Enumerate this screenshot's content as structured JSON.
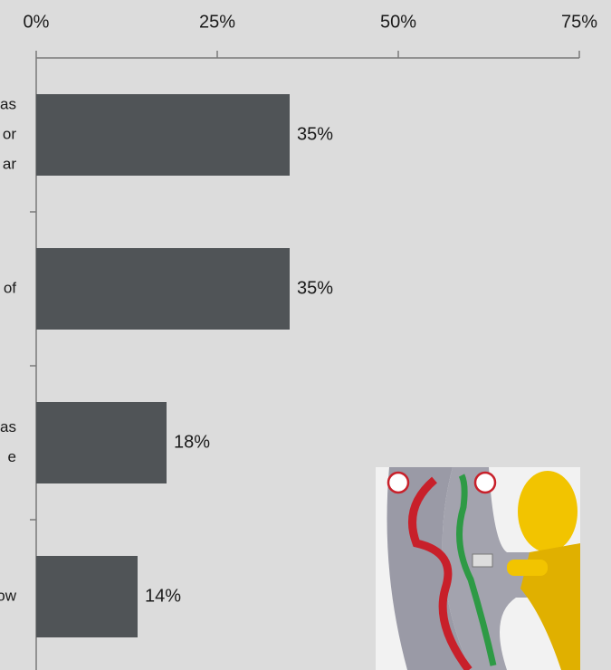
{
  "chart_data": {
    "type": "bar",
    "orientation": "horizontal",
    "categories": [
      [
        "as",
        "or",
        "ar"
      ],
      [
        "of"
      ],
      [
        "as",
        "e"
      ],
      [
        "ow"
      ]
    ],
    "values": [
      35,
      35,
      18,
      14
    ],
    "value_labels": [
      "35%",
      "35%",
      "18%",
      "14%"
    ],
    "color": "#505457",
    "xlim": [
      0,
      75
    ],
    "xticks": [
      {
        "value": 0,
        "label": "0%"
      },
      {
        "value": 25,
        "label": "25%"
      },
      {
        "value": 50,
        "label": "50%"
      },
      {
        "value": 75,
        "label": "75%"
      }
    ]
  }
}
